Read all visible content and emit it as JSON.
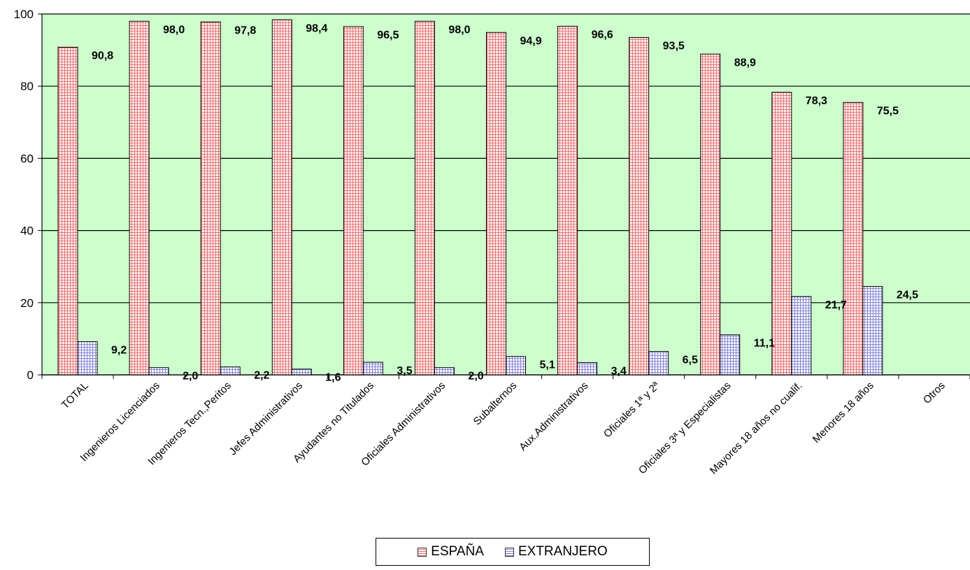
{
  "chart_data": {
    "type": "bar",
    "categories": [
      "TOTAL",
      "Ingenieros Licenciados",
      "Ingenieros Tecn.,Peritos",
      "Jefes Administrativos",
      "Ayudantes no Titulados",
      "Oficiales Administrativos",
      "Subalternos",
      "Aux.Administrativos",
      "Oficiales 1ª y 2ª",
      "Oficiales 3ª y Especialistas",
      "Mayores 18 años no cualif.",
      "Menores 18 años",
      "Otros"
    ],
    "series": [
      {
        "name": "ESPAÑA",
        "color": "#ff9999",
        "values": [
          90.8,
          98.0,
          97.8,
          98.4,
          96.5,
          98.0,
          94.9,
          96.6,
          93.5,
          88.9,
          78.3,
          75.5,
          null
        ],
        "labels": [
          "90,8",
          "98,0",
          "97,8",
          "98,4",
          "96,5",
          "98,0",
          "94,9",
          "96,6",
          "93,5",
          "88,9",
          "78,3",
          "75,5",
          ""
        ]
      },
      {
        "name": "EXTRANJERO",
        "color": "#9999ff",
        "values": [
          9.2,
          2.0,
          2.2,
          1.6,
          3.5,
          2.0,
          5.1,
          3.4,
          6.5,
          11.1,
          21.7,
          24.5,
          null
        ],
        "labels": [
          "9,2",
          "2,0",
          "2,2",
          "1,6",
          "3,5",
          "2,0",
          "5,1",
          "3,4",
          "6,5",
          "11,1",
          "21,7",
          "24,5",
          ""
        ]
      }
    ],
    "ylim": [
      0,
      100
    ],
    "yticks": [
      "0",
      "20",
      "40",
      "60",
      "80",
      "100"
    ],
    "grid": true,
    "plot_background": "#ccffcc",
    "legend_position": "bottom"
  },
  "legend": {
    "items": [
      "ESPAÑA",
      "EXTRANJERO"
    ]
  }
}
